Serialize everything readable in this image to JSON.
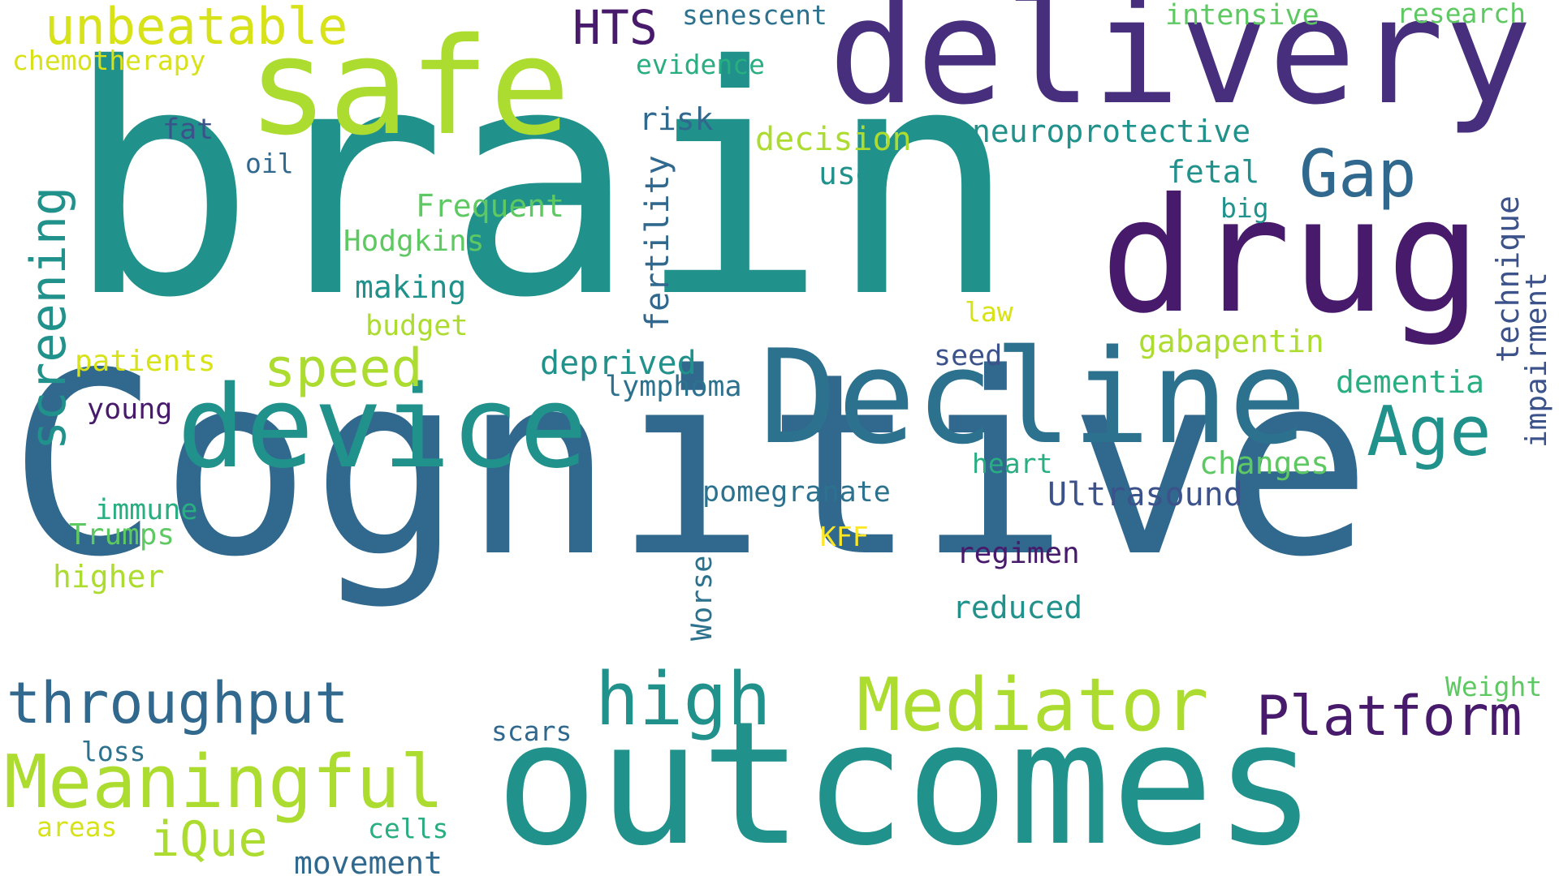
{
  "palette": {
    "dark_purple": "#481a6c",
    "indigo": "#472f7d",
    "slate_blue": "#3b528b",
    "steel_blue": "#31688e",
    "teal_blue": "#2c728e",
    "teal": "#21918c",
    "sea_green": "#28ae80",
    "green": "#5ec962",
    "lime": "#addc30",
    "yellow": "#d8e219",
    "bright_yellow": "#fde725"
  },
  "words": [
    {
      "text": "brain",
      "color": "#21918c"
    },
    {
      "text": "Cognitive",
      "color": "#31688e"
    },
    {
      "text": "outcomes",
      "color": "#21918c"
    },
    {
      "text": "delivery",
      "color": "#472f7d"
    },
    {
      "text": "safe",
      "color": "#addc30"
    },
    {
      "text": "drug",
      "color": "#481a6c"
    },
    {
      "text": "Decline",
      "color": "#2c728e"
    },
    {
      "text": "device",
      "color": "#21918c"
    },
    {
      "text": "Mediator",
      "color": "#addc30"
    },
    {
      "text": "Meaningful",
      "color": "#addc30"
    },
    {
      "text": "high",
      "color": "#21918c"
    },
    {
      "text": "throughput",
      "color": "#31688e"
    },
    {
      "text": "Platform",
      "color": "#481a6c"
    },
    {
      "text": "Age",
      "color": "#21918c"
    },
    {
      "text": "Gap",
      "color": "#31688e"
    },
    {
      "text": "unbeatable",
      "color": "#d8e219"
    },
    {
      "text": "screening",
      "color": "#21918c"
    },
    {
      "text": "speed",
      "color": "#addc30"
    },
    {
      "text": "HTS",
      "color": "#481a6c"
    },
    {
      "text": "iQue",
      "color": "#addc30"
    },
    {
      "text": "Ultrasound",
      "color": "#3b528b"
    },
    {
      "text": "neuroprotective",
      "color": "#21918c"
    },
    {
      "text": "decision",
      "color": "#addc30"
    },
    {
      "text": "deprived",
      "color": "#21918c"
    },
    {
      "text": "gabapentin",
      "color": "#addc30"
    },
    {
      "text": "dementia",
      "color": "#28ae80"
    },
    {
      "text": "changes",
      "color": "#5ec962"
    },
    {
      "text": "reduced",
      "color": "#21918c"
    },
    {
      "text": "fertility",
      "color": "#31688e"
    },
    {
      "text": "technique",
      "color": "#3b528b"
    },
    {
      "text": "impairment",
      "color": "#3b528b"
    },
    {
      "text": "Frequent",
      "color": "#5ec962"
    },
    {
      "text": "making",
      "color": "#21918c"
    },
    {
      "text": "Hodgkins",
      "color": "#5ec962"
    },
    {
      "text": "budget",
      "color": "#addc30"
    },
    {
      "text": "patients",
      "color": "#d8e219"
    },
    {
      "text": "lymphoma",
      "color": "#2c728e"
    },
    {
      "text": "pomegranate",
      "color": "#2c728e"
    },
    {
      "text": "immune",
      "color": "#28ae80"
    },
    {
      "text": "Trumps",
      "color": "#5ec962"
    },
    {
      "text": "higher",
      "color": "#addc30"
    },
    {
      "text": "Worse",
      "color": "#2c728e"
    },
    {
      "text": "regimen",
      "color": "#481a6c"
    },
    {
      "text": "movement",
      "color": "#31688e"
    },
    {
      "text": "cells",
      "color": "#28ae80"
    },
    {
      "text": "areas",
      "color": "#d8e219"
    },
    {
      "text": "scars",
      "color": "#31688e"
    },
    {
      "text": "loss",
      "color": "#2c728e"
    },
    {
      "text": "Weight",
      "color": "#5ec962"
    },
    {
      "text": "young",
      "color": "#481a6c"
    },
    {
      "text": "heart",
      "color": "#28ae80"
    },
    {
      "text": "KFF",
      "color": "#fde725"
    },
    {
      "text": "seed",
      "color": "#3b528b"
    },
    {
      "text": "law",
      "color": "#d8e219"
    },
    {
      "text": "fetal",
      "color": "#21918c"
    },
    {
      "text": "big",
      "color": "#21918c"
    },
    {
      "text": "use",
      "color": "#21918c"
    },
    {
      "text": "risk",
      "color": "#31688e"
    },
    {
      "text": "fat",
      "color": "#3b528b"
    },
    {
      "text": "oil",
      "color": "#31688e"
    },
    {
      "text": "evidence",
      "color": "#28ae80"
    },
    {
      "text": "senescent",
      "color": "#2c728e"
    },
    {
      "text": "chemotherapy",
      "color": "#d8e219"
    },
    {
      "text": "intensive",
      "color": "#5ec962"
    },
    {
      "text": "research",
      "color": "#5ec962"
    }
  ]
}
